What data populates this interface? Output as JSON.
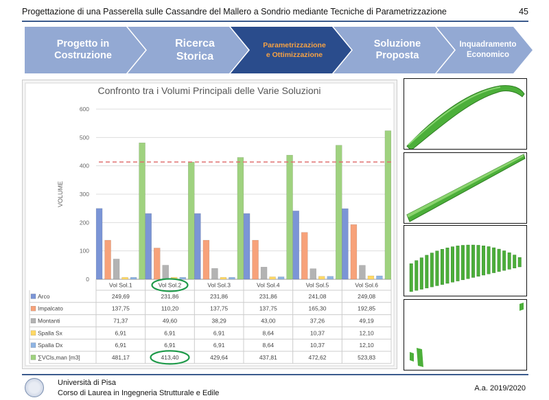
{
  "header": {
    "title": "Progettazione di una Passerella sulle Cassandre del Mallero a Sondrio mediante Tecniche di Parametrizzazione",
    "page_number": "45"
  },
  "steps": [
    {
      "line1": "Progetto in",
      "line2": "Costruzione",
      "active": false
    },
    {
      "line1": "Ricerca",
      "line2": "Storica",
      "active": false
    },
    {
      "line1": "Parametrizzazione",
      "line2": "e Ottimizzazione",
      "active": true
    },
    {
      "line1": "Soluzione",
      "line2": "Proposta",
      "active": false
    },
    {
      "line1": "Inquadramento",
      "line2": "Economico",
      "active": false
    }
  ],
  "colors": {
    "step_inactive": "#93a9d3",
    "step_active": "#2a4c8c",
    "step_active_text": "#f6a244",
    "rule": "#3a5a8c",
    "circle_highlight": "#1f9a4a",
    "model_green": "#4caf3a"
  },
  "chart_data": {
    "type": "bar",
    "title": "Confronto tra i Volumi Principali delle Varie Soluzioni",
    "ylabel": "VOLUME",
    "xlabel": "",
    "ylim": [
      0,
      600
    ],
    "yticks": [
      0,
      100,
      200,
      300,
      400,
      500,
      600
    ],
    "grid": true,
    "categories": [
      "Vol Sol.1",
      "Vol Sol.2",
      "Vol Sol.3",
      "Vol Sol.4",
      "Vol Sol.5",
      "Vol Sol.6"
    ],
    "series": [
      {
        "name": "Arco",
        "color": "#7b95d6",
        "values": [
          249.69,
          231.86,
          231.86,
          231.86,
          241.08,
          249.08
        ],
        "labels": [
          "249,69",
          "231,86",
          "231,86",
          "231,86",
          "241,08",
          "249,08"
        ]
      },
      {
        "name": "Impalcato",
        "color": "#f7a27a",
        "values": [
          137.75,
          110.2,
          137.75,
          137.75,
          165.3,
          192.85
        ],
        "labels": [
          "137,75",
          "110,20",
          "137,75",
          "137,75",
          "165,30",
          "192,85"
        ]
      },
      {
        "name": "Montanti",
        "color": "#b3b3b3",
        "values": [
          71.37,
          49.6,
          38.29,
          43.0,
          37.26,
          49.19
        ],
        "labels": [
          "71,37",
          "49,60",
          "38,29",
          "43,00",
          "37,26",
          "49,19"
        ]
      },
      {
        "name": "Spalla Sx",
        "color": "#ffd966",
        "values": [
          6.91,
          6.91,
          6.91,
          8.64,
          10.37,
          12.1
        ],
        "labels": [
          "6,91",
          "6,91",
          "6,91",
          "8,64",
          "10,37",
          "12,10"
        ]
      },
      {
        "name": "Spalla Dx",
        "color": "#8fb4e3",
        "values": [
          6.91,
          6.91,
          6.91,
          8.64,
          10.37,
          12.1
        ],
        "labels": [
          "6,91",
          "6,91",
          "6,91",
          "8,64",
          "10,37",
          "12,10"
        ]
      },
      {
        "name": "∑VCls,man [m3]",
        "color": "#9fd27f",
        "values": [
          481.17,
          413.4,
          429.64,
          437.81,
          472.62,
          523.83
        ],
        "labels": [
          "481,17",
          "413,40",
          "429,64",
          "437,81",
          "472,62",
          "523,83"
        ]
      }
    ],
    "reference_line": {
      "value": 413.4,
      "color": "#e07070",
      "style": "dashed"
    },
    "highlighted_category_index": 1
  },
  "footer": {
    "university": "Università di Pisa",
    "course": "Corso di Laurea in Ingegneria Strutturale e Edile",
    "year": "A.a. 2019/2020"
  }
}
